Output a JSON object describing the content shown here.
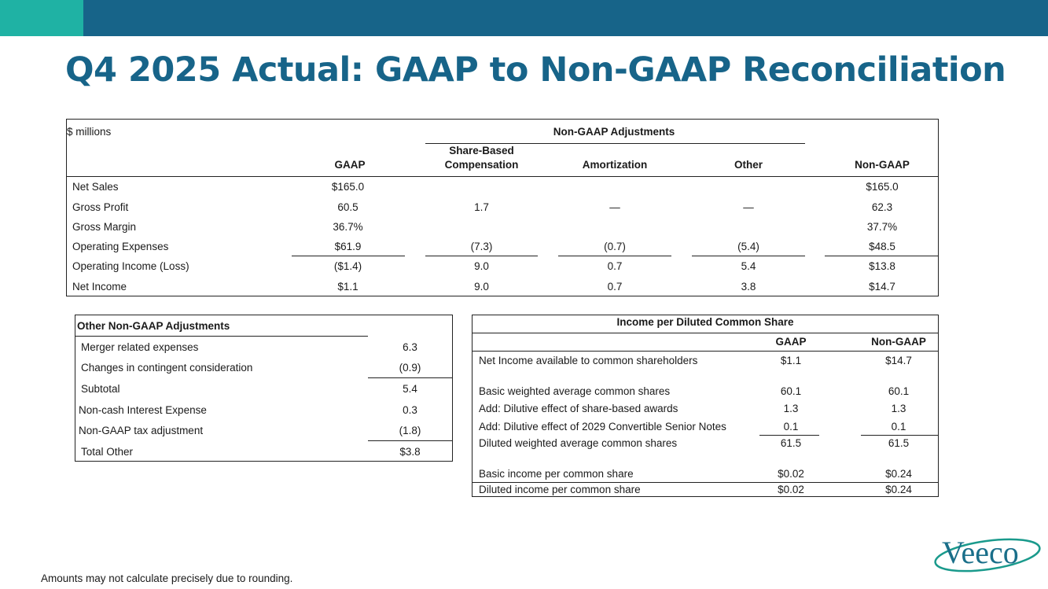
{
  "title": "Q4 2025 Actual: GAAP to Non-GAAP Reconciliation",
  "colors": {
    "brand": "#176489",
    "accent": "#1fb2a4",
    "logo": "#1a9a8c"
  },
  "main_table": {
    "units": "$ millions",
    "group_header": "Non-GAAP Adjustments",
    "columns": [
      "GAAP",
      "Share-Based\nCompensation",
      "Amortization",
      "Other",
      "Non-GAAP"
    ],
    "col_sbc_line1": "Share-Based",
    "col_sbc_line2": "Compensation",
    "rows": [
      {
        "label": "Net Sales",
        "gaap": "$165.0",
        "sbc": "",
        "amort": "",
        "other": "",
        "nongaap": "$165.0"
      },
      {
        "label": "Gross Profit",
        "gaap": "60.5",
        "sbc": "1.7",
        "amort": "—",
        "other": "—",
        "nongaap": "62.3"
      },
      {
        "label": "Gross Margin",
        "gaap": "36.7%",
        "sbc": "",
        "amort": "",
        "other": "",
        "nongaap": "37.7%"
      },
      {
        "label": "Operating Expenses",
        "gaap": "$61.9",
        "sbc": "(7.3)",
        "amort": "(0.7)",
        "other": "(5.4)",
        "nongaap": "$48.5"
      },
      {
        "label": "Operating Income (Loss)",
        "gaap": "($1.4)",
        "sbc": "9.0",
        "amort": "0.7",
        "other": "5.4",
        "nongaap": "$13.8"
      },
      {
        "label": "Net Income",
        "gaap": "$1.1",
        "sbc": "9.0",
        "amort": "0.7",
        "other": "3.8",
        "nongaap": "$14.7"
      }
    ]
  },
  "other_table": {
    "title": "Other Non-GAAP Adjustments",
    "rows": [
      {
        "label": "Merger related expenses",
        "value": "6.3"
      },
      {
        "label": "Changes in contingent consideration",
        "value": "(0.9)"
      },
      {
        "label": "Subtotal",
        "value": "5.4"
      },
      {
        "label": "Non-cash Interest Expense",
        "value": "0.3"
      },
      {
        "label": "Non-GAAP tax adjustment",
        "value": "(1.8)"
      },
      {
        "label": "Total Other",
        "value": "$3.8"
      }
    ]
  },
  "eps_table": {
    "title": "Income per Diluted Common Share",
    "col_gaap": "GAAP",
    "col_nongaap": "Non-GAAP",
    "rows": [
      {
        "label": "Net Income available to common shareholders",
        "gaap": "$1.1",
        "nongaap": "$14.7"
      },
      {
        "label": "Basic weighted average common shares",
        "gaap": "60.1",
        "nongaap": "60.1"
      },
      {
        "label": "Add: Dilutive effect of share-based awards",
        "gaap": "1.3",
        "nongaap": "1.3"
      },
      {
        "label": "Add: Dilutive effect of 2029 Convertible Senior Notes",
        "gaap": "0.1",
        "nongaap": "0.1"
      },
      {
        "label": "Diluted weighted average common shares",
        "gaap": "61.5",
        "nongaap": "61.5"
      },
      {
        "label": "Basic income per common share",
        "gaap": "$0.02",
        "nongaap": "$0.24"
      },
      {
        "label": "Diluted income per common share",
        "gaap": "$0.02",
        "nongaap": "$0.24"
      }
    ]
  },
  "footnote": "Amounts may not calculate precisely due to rounding.",
  "logo": {
    "icon": "veeco-logo-icon",
    "text": "Veeco"
  }
}
